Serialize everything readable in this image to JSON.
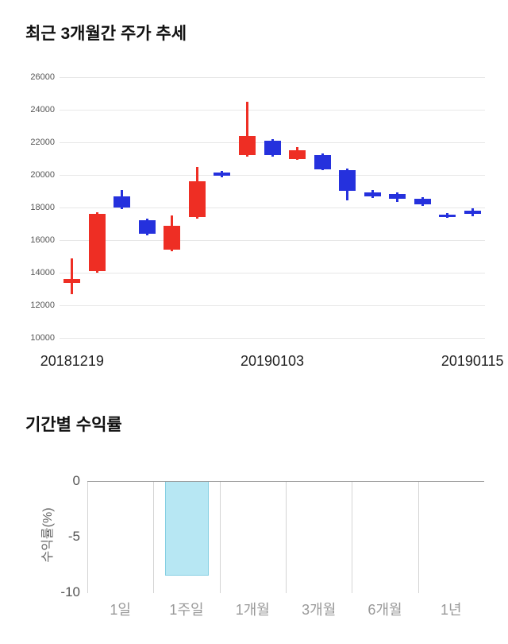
{
  "chart_data": [
    {
      "type": "candlestick",
      "title": "최근 3개월간 주가 추세",
      "y_min": 10000,
      "y_max": 26000,
      "y_step": 2000,
      "up_color": "#ee2e24",
      "down_color": "#2531dd",
      "grid_color": "#e7e7e7",
      "x_tick_labels": [
        {
          "index": 0,
          "label": "20181219"
        },
        {
          "index": 8,
          "label": "20190103"
        },
        {
          "index": 16,
          "label": "20190115"
        }
      ],
      "candles": [
        {
          "open": 13350,
          "high": 14900,
          "low": 12700,
          "close": 13600
        },
        {
          "open": 14100,
          "high": 17700,
          "low": 14000,
          "close": 17600
        },
        {
          "open": 18700,
          "high": 19100,
          "low": 17900,
          "close": 18000
        },
        {
          "open": 17200,
          "high": 17300,
          "low": 16300,
          "close": 16400
        },
        {
          "open": 15400,
          "high": 17500,
          "low": 15300,
          "close": 16900
        },
        {
          "open": 17400,
          "high": 20500,
          "low": 17300,
          "close": 19600
        },
        {
          "open": 20150,
          "high": 20250,
          "low": 19850,
          "close": 19950
        },
        {
          "open": 21200,
          "high": 24500,
          "low": 21100,
          "close": 22400
        },
        {
          "open": 22100,
          "high": 22200,
          "low": 21100,
          "close": 21200
        },
        {
          "open": 21000,
          "high": 21700,
          "low": 20900,
          "close": 21500
        },
        {
          "open": 21200,
          "high": 21300,
          "low": 20300,
          "close": 20350
        },
        {
          "open": 20300,
          "high": 20400,
          "low": 18450,
          "close": 19000
        },
        {
          "open": 18950,
          "high": 19100,
          "low": 18600,
          "close": 18700
        },
        {
          "open": 18850,
          "high": 18950,
          "low": 18350,
          "close": 18550
        },
        {
          "open": 18550,
          "high": 18650,
          "low": 18100,
          "close": 18200
        },
        {
          "open": 17550,
          "high": 17650,
          "low": 17350,
          "close": 17400
        },
        {
          "open": 17800,
          "high": 17950,
          "low": 17450,
          "close": 17600
        }
      ]
    },
    {
      "type": "bar",
      "title": "기간별 수익률",
      "ylabel": "수익률(%)",
      "categories": [
        "1일",
        "1주일",
        "1개월",
        "3개월",
        "6개월",
        "1년"
      ],
      "values": [
        null,
        -8.4,
        null,
        null,
        null,
        null
      ],
      "y_ticks": [
        0,
        -5,
        -10
      ],
      "ylim": [
        -10,
        0
      ],
      "bar_fill": "#b7e7f3",
      "bar_border": "#85cfe2",
      "grid_color": "#d4d4d4"
    }
  ]
}
